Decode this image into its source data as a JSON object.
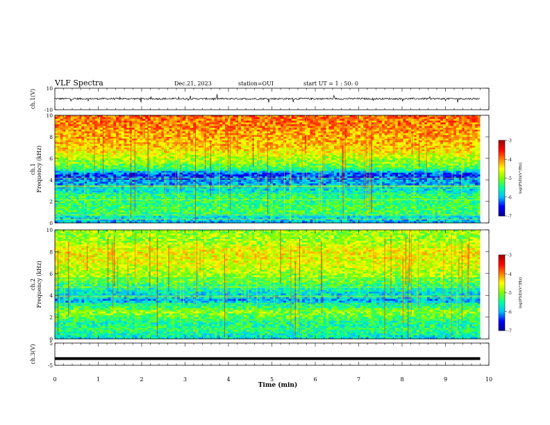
{
  "header": {
    "title": "VLF Spectra",
    "date": "Dec.21, 2023",
    "station": "station=OUI",
    "start": "start  UT =   1 : 50: 0"
  },
  "chart_data": [
    {
      "type": "line",
      "ylabel": "ch.1(V)",
      "ylim": [
        -10,
        10
      ],
      "yticks": [
        "10",
        "-10"
      ],
      "xlim": [
        0,
        10
      ],
      "trace": "noise-centered-near-0",
      "grid": false
    },
    {
      "type": "heatmap",
      "ylabel": "ch.1\nFrequency (kHz)",
      "ylabel_lines": [
        "ch.1",
        "Frequency (kHz)"
      ],
      "ylim": [
        0,
        10
      ],
      "yticks": [
        "0",
        "2",
        "4",
        "6",
        "8",
        "10"
      ],
      "xlim": [
        0,
        10
      ],
      "colorbar": {
        "label": "log(PSD)(V²/Hz)",
        "range": [
          -7,
          -3
        ],
        "ticks": [
          "-3",
          "-4",
          "-5",
          "-6",
          "-7"
        ]
      },
      "profile": [
        [
          0,
          -6.0
        ],
        [
          0.6,
          -5.7
        ],
        [
          1.0,
          -5.2
        ],
        [
          1.5,
          -5.3
        ],
        [
          2.5,
          -5.4
        ],
        [
          3.5,
          -6.0
        ],
        [
          4.5,
          -6.4
        ],
        [
          5.0,
          -5.3
        ],
        [
          6.0,
          -4.8
        ],
        [
          7.0,
          -4.3
        ],
        [
          8.5,
          -4.1
        ],
        [
          10,
          -3.9
        ]
      ]
    },
    {
      "type": "heatmap",
      "ylabel": "ch.2\nFrequency (kHz)",
      "ylabel_lines": [
        "ch.2",
        "Frequency (kHz)"
      ],
      "ylim": [
        0,
        10
      ],
      "yticks": [
        "0",
        "2",
        "4",
        "6",
        "8",
        "10"
      ],
      "xlim": [
        0,
        10
      ],
      "colorbar": {
        "label": "log(PSD)(V²/Hz)",
        "range": [
          -7,
          -3
        ],
        "ticks": [
          "-3",
          "-4",
          "-5",
          "-6",
          "-7"
        ]
      },
      "profile": [
        [
          0,
          -5.8
        ],
        [
          0.7,
          -5.4
        ],
        [
          1.5,
          -5.5
        ],
        [
          2.5,
          -4.9
        ],
        [
          3.5,
          -6.0
        ],
        [
          4.5,
          -5.6
        ],
        [
          5.5,
          -5.0
        ],
        [
          7.0,
          -4.6
        ],
        [
          8.0,
          -4.5
        ],
        [
          9.0,
          -4.9
        ],
        [
          10,
          -4.9
        ]
      ]
    },
    {
      "type": "line",
      "ylabel": "ch.3(V)",
      "ylim": [
        -5,
        5
      ],
      "yticks": [
        "5",
        "-5"
      ],
      "xlim": [
        0,
        10
      ],
      "xticks": [
        "0",
        "1",
        "2",
        "3",
        "4",
        "5",
        "6",
        "7",
        "8",
        "9",
        "10"
      ],
      "xlabel": "Time (min)",
      "x": [
        0,
        9.8
      ],
      "y": [
        -2,
        -2
      ]
    }
  ],
  "colors": {
    "frame": "#000000",
    "colormap": [
      "#00008f",
      "#0000ff",
      "#00c0ff",
      "#00ffa0",
      "#80ff00",
      "#ffff00",
      "#ff8000",
      "#ff0000",
      "#a00000"
    ]
  }
}
